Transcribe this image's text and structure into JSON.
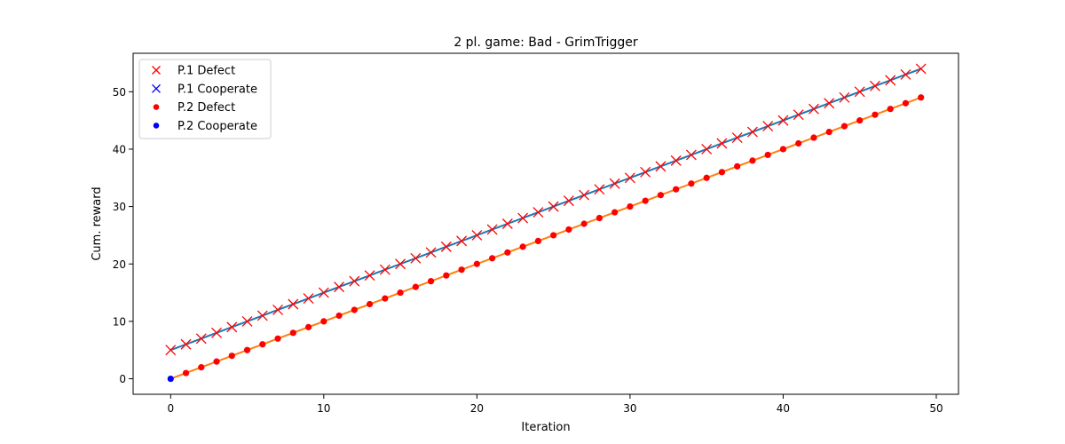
{
  "chart_data": {
    "type": "line",
    "title": "2 pl. game: Bad - GrimTrigger",
    "xlabel": "Iteration",
    "ylabel": "Cum. reward",
    "xlim": [
      -2.45,
      51.45
    ],
    "ylim": [
      -2.7,
      56.7
    ],
    "xticks": [
      0,
      10,
      20,
      30,
      40,
      50
    ],
    "yticks": [
      0,
      10,
      20,
      30,
      40,
      50
    ],
    "grid": false,
    "legend_position": "top-left",
    "x": [
      0,
      1,
      2,
      3,
      4,
      5,
      6,
      7,
      8,
      9,
      10,
      11,
      12,
      13,
      14,
      15,
      16,
      17,
      18,
      19,
      20,
      21,
      22,
      23,
      24,
      25,
      26,
      27,
      28,
      29,
      30,
      31,
      32,
      33,
      34,
      35,
      36,
      37,
      38,
      39,
      40,
      41,
      42,
      43,
      44,
      45,
      46,
      47,
      48,
      49
    ],
    "series": [
      {
        "name": "P.1",
        "line_color": "#1f77b4",
        "values": [
          5,
          6,
          7,
          8,
          9,
          10,
          11,
          12,
          13,
          14,
          15,
          16,
          17,
          18,
          19,
          20,
          21,
          22,
          23,
          24,
          25,
          26,
          27,
          28,
          29,
          30,
          31,
          32,
          33,
          34,
          35,
          36,
          37,
          38,
          39,
          40,
          41,
          42,
          43,
          44,
          45,
          46,
          47,
          48,
          49,
          50,
          51,
          52,
          53,
          54
        ],
        "actions": [
          "D",
          "D",
          "D",
          "D",
          "D",
          "D",
          "D",
          "D",
          "D",
          "D",
          "D",
          "D",
          "D",
          "D",
          "D",
          "D",
          "D",
          "D",
          "D",
          "D",
          "D",
          "D",
          "D",
          "D",
          "D",
          "D",
          "D",
          "D",
          "D",
          "D",
          "D",
          "D",
          "D",
          "D",
          "D",
          "D",
          "D",
          "D",
          "D",
          "D",
          "D",
          "D",
          "D",
          "D",
          "D",
          "D",
          "D",
          "D",
          "D",
          "D"
        ]
      },
      {
        "name": "P.2",
        "line_color": "#ff7f0e",
        "values": [
          0,
          1,
          2,
          3,
          4,
          5,
          6,
          7,
          8,
          9,
          10,
          11,
          12,
          13,
          14,
          15,
          16,
          17,
          18,
          19,
          20,
          21,
          22,
          23,
          24,
          25,
          26,
          27,
          28,
          29,
          30,
          31,
          32,
          33,
          34,
          35,
          36,
          37,
          38,
          39,
          40,
          41,
          42,
          43,
          44,
          45,
          46,
          47,
          48,
          49
        ],
        "actions": [
          "C",
          "D",
          "D",
          "D",
          "D",
          "D",
          "D",
          "D",
          "D",
          "D",
          "D",
          "D",
          "D",
          "D",
          "D",
          "D",
          "D",
          "D",
          "D",
          "D",
          "D",
          "D",
          "D",
          "D",
          "D",
          "D",
          "D",
          "D",
          "D",
          "D",
          "D",
          "D",
          "D",
          "D",
          "D",
          "D",
          "D",
          "D",
          "D",
          "D",
          "D",
          "D",
          "D",
          "D",
          "D",
          "D",
          "D",
          "D",
          "D",
          "D"
        ]
      }
    ],
    "legend": [
      {
        "label": "P.1 Defect",
        "marker": "x",
        "color": "#ff0000"
      },
      {
        "label": "P.1 Cooperate",
        "marker": "x",
        "color": "#0000ff"
      },
      {
        "label": "P.2 Defect",
        "marker": "dot",
        "color": "#ff0000"
      },
      {
        "label": "P.2 Cooperate",
        "marker": "dot",
        "color": "#0000ff"
      }
    ],
    "action_colors": {
      "D": "#ff0000",
      "C": "#0000ff"
    }
  }
}
